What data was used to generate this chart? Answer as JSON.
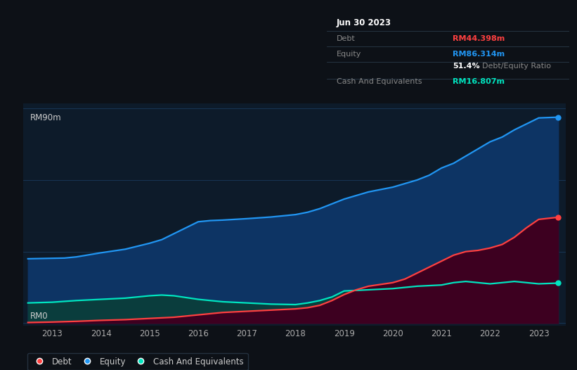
{
  "bg_color": "#0d1117",
  "plot_bg_color": "#0d1b2a",
  "grid_color": "#1a3a5c",
  "title_date": "Jun 30 2023",
  "debt_label": "Debt",
  "equity_label": "Equity",
  "cash_label": "Cash And Equivalents",
  "debt_value": "RM44.398m",
  "equity_value": "RM86.314m",
  "ratio_value": "51.4%",
  "ratio_label": "Debt/Equity Ratio",
  "cash_value": "RM16.807m",
  "debt_color": "#ff4040",
  "equity_color": "#2196f3",
  "cash_color": "#00e5c0",
  "ylabel_top": "RM90m",
  "ylabel_bottom": "RM0",
  "x_years": [
    2013,
    2014,
    2015,
    2016,
    2017,
    2018,
    2019,
    2020,
    2021,
    2022,
    2023
  ],
  "equity_data": [
    [
      2012.5,
      27.0
    ],
    [
      2013.0,
      27.2
    ],
    [
      2013.25,
      27.3
    ],
    [
      2013.5,
      27.8
    ],
    [
      2014.0,
      29.5
    ],
    [
      2014.5,
      31.0
    ],
    [
      2015.0,
      33.5
    ],
    [
      2015.25,
      35.0
    ],
    [
      2015.5,
      37.5
    ],
    [
      2016.0,
      42.5
    ],
    [
      2016.25,
      43.0
    ],
    [
      2016.5,
      43.2
    ],
    [
      2017.0,
      43.8
    ],
    [
      2017.5,
      44.5
    ],
    [
      2018.0,
      45.5
    ],
    [
      2018.25,
      46.5
    ],
    [
      2018.5,
      48.0
    ],
    [
      2019.0,
      52.0
    ],
    [
      2019.25,
      53.5
    ],
    [
      2019.5,
      55.0
    ],
    [
      2020.0,
      57.0
    ],
    [
      2020.25,
      58.5
    ],
    [
      2020.5,
      60.0
    ],
    [
      2020.75,
      62.0
    ],
    [
      2021.0,
      65.0
    ],
    [
      2021.25,
      67.0
    ],
    [
      2021.5,
      70.0
    ],
    [
      2021.75,
      73.0
    ],
    [
      2022.0,
      76.0
    ],
    [
      2022.25,
      78.0
    ],
    [
      2022.5,
      81.0
    ],
    [
      2022.75,
      83.5
    ],
    [
      2023.0,
      86.0
    ],
    [
      2023.4,
      86.314
    ]
  ],
  "debt_data": [
    [
      2012.5,
      0.3
    ],
    [
      2013.0,
      0.5
    ],
    [
      2013.5,
      0.8
    ],
    [
      2014.0,
      1.2
    ],
    [
      2014.5,
      1.5
    ],
    [
      2015.0,
      2.0
    ],
    [
      2015.5,
      2.5
    ],
    [
      2016.0,
      3.5
    ],
    [
      2016.25,
      4.0
    ],
    [
      2016.5,
      4.5
    ],
    [
      2017.0,
      5.0
    ],
    [
      2017.5,
      5.5
    ],
    [
      2018.0,
      6.0
    ],
    [
      2018.25,
      6.5
    ],
    [
      2018.5,
      7.5
    ],
    [
      2018.75,
      9.5
    ],
    [
      2019.0,
      12.0
    ],
    [
      2019.25,
      14.0
    ],
    [
      2019.5,
      15.5
    ],
    [
      2020.0,
      17.0
    ],
    [
      2020.25,
      18.5
    ],
    [
      2020.5,
      21.0
    ],
    [
      2021.0,
      26.0
    ],
    [
      2021.25,
      28.5
    ],
    [
      2021.5,
      30.0
    ],
    [
      2021.75,
      30.5
    ],
    [
      2022.0,
      31.5
    ],
    [
      2022.25,
      33.0
    ],
    [
      2022.5,
      36.0
    ],
    [
      2022.75,
      40.0
    ],
    [
      2023.0,
      43.5
    ],
    [
      2023.4,
      44.398
    ]
  ],
  "cash_data": [
    [
      2012.5,
      8.5
    ],
    [
      2013.0,
      8.8
    ],
    [
      2013.5,
      9.5
    ],
    [
      2014.0,
      10.0
    ],
    [
      2014.5,
      10.5
    ],
    [
      2015.0,
      11.5
    ],
    [
      2015.25,
      11.8
    ],
    [
      2015.5,
      11.5
    ],
    [
      2016.0,
      10.0
    ],
    [
      2016.5,
      9.0
    ],
    [
      2017.0,
      8.5
    ],
    [
      2017.5,
      8.0
    ],
    [
      2018.0,
      7.8
    ],
    [
      2018.25,
      8.5
    ],
    [
      2018.5,
      9.5
    ],
    [
      2018.75,
      11.0
    ],
    [
      2019.0,
      13.5
    ],
    [
      2019.5,
      14.0
    ],
    [
      2020.0,
      14.5
    ],
    [
      2020.25,
      15.0
    ],
    [
      2020.5,
      15.5
    ],
    [
      2021.0,
      16.0
    ],
    [
      2021.25,
      17.0
    ],
    [
      2021.5,
      17.5
    ],
    [
      2021.75,
      17.0
    ],
    [
      2022.0,
      16.5
    ],
    [
      2022.25,
      17.0
    ],
    [
      2022.5,
      17.5
    ],
    [
      2022.75,
      17.0
    ],
    [
      2023.0,
      16.5
    ],
    [
      2023.4,
      16.807
    ]
  ]
}
